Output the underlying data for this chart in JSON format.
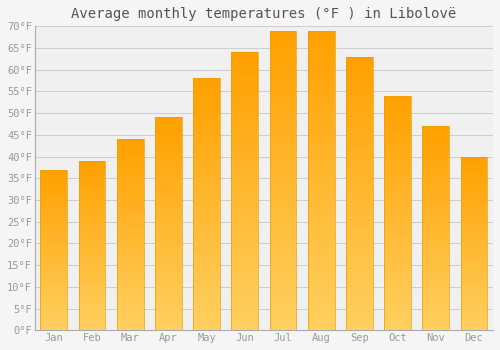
{
  "months": [
    "Jan",
    "Feb",
    "Mar",
    "Apr",
    "May",
    "Jun",
    "Jul",
    "Aug",
    "Sep",
    "Oct",
    "Nov",
    "Dec"
  ],
  "temperatures": [
    37,
    39,
    44,
    49,
    58,
    64,
    69,
    69,
    63,
    54,
    47,
    40
  ],
  "title": "Average monthly temperatures (°F ) in Libolovë",
  "ylim": [
    0,
    70
  ],
  "yticks": [
    0,
    5,
    10,
    15,
    20,
    25,
    30,
    35,
    40,
    45,
    50,
    55,
    60,
    65,
    70
  ],
  "ytick_labels": [
    "0°F",
    "5°F",
    "10°F",
    "15°F",
    "20°F",
    "25°F",
    "30°F",
    "35°F",
    "40°F",
    "45°F",
    "50°F",
    "55°F",
    "60°F",
    "65°F",
    "70°F"
  ],
  "background_color": "#f5f5f5",
  "plot_background": "#f0f0f0",
  "grid_color": "#cccccc",
  "title_fontsize": 10,
  "tick_fontsize": 7.5,
  "bar_color_bottom": "#FFD060",
  "bar_color_top": "#FFA500",
  "bar_edge_color": "#E8A000",
  "bar_width": 0.7,
  "tick_color": "#999999",
  "title_color": "#555555"
}
